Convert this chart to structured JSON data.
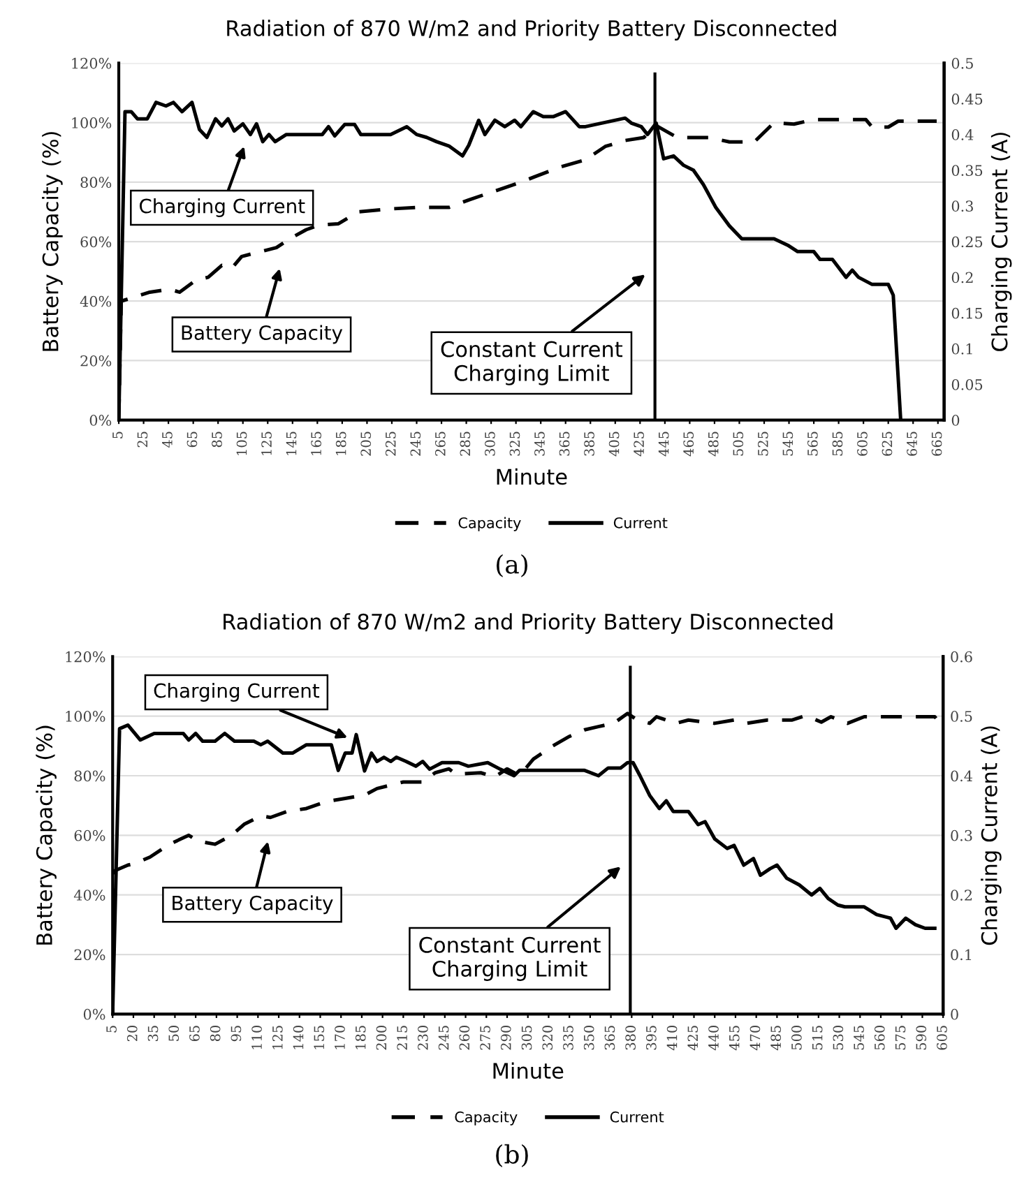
{
  "chart_data": [
    {
      "type": "line",
      "title": "Radiation of 870 W/m2 and Priority Battery Disconnected",
      "xlabel": "Minute",
      "ylabel": "Battery Capacity (%)",
      "y2label": "Charging Current (A)",
      "xlim": [
        5,
        670
      ],
      "xticks": [
        5,
        25,
        45,
        65,
        85,
        105,
        125,
        145,
        165,
        185,
        205,
        225,
        245,
        265,
        285,
        305,
        325,
        345,
        365,
        385,
        405,
        425,
        445,
        465,
        485,
        505,
        525,
        545,
        565,
        585,
        605,
        625,
        645,
        665
      ],
      "ylim": [
        0,
        120
      ],
      "yticks": [
        {
          "value": 0,
          "label": "0%"
        },
        {
          "value": 20,
          "label": "20%"
        },
        {
          "value": 40,
          "label": "40%"
        },
        {
          "value": 60,
          "label": "60%"
        },
        {
          "value": 80,
          "label": "80%"
        },
        {
          "value": 100,
          "label": "100%"
        },
        {
          "value": 120,
          "label": "120%"
        }
      ],
      "y2lim": [
        0,
        0.5
      ],
      "y2ticks": [
        0,
        0.05,
        0.1,
        0.15,
        0.2,
        0.25,
        0.3,
        0.35,
        0.4,
        0.45,
        0.5
      ],
      "grid": "y",
      "legend": "bottom",
      "series": [
        {
          "name": "Capacity",
          "color": "#000000",
          "line_style": "dashed",
          "x": [
            5,
            7,
            15,
            30,
            46,
            54,
            67,
            77,
            88,
            96,
            104,
            132,
            143,
            156,
            166,
            182,
            198,
            224,
            245,
            271,
            287,
            308,
            329,
            360,
            381,
            397,
            413,
            428,
            438,
            455,
            481,
            497,
            517,
            533,
            549,
            565,
            607,
            612,
            625,
            633,
            664
          ],
          "values": [
            0,
            40,
            41,
            43,
            44,
            43,
            47,
            48,
            52,
            51,
            55,
            58,
            61,
            64,
            65.5,
            66,
            70,
            71,
            71.5,
            71.5,
            74,
            77,
            80,
            85,
            87.5,
            92,
            94,
            95,
            99,
            95,
            95,
            93.5,
            93.5,
            100,
            99.5,
            101,
            101,
            98.5,
            98.5,
            100.5,
            100.5
          ]
        },
        {
          "name": "Current",
          "color": "#000000",
          "line_style": "solid",
          "axis": "y2",
          "x": [
            5,
            10,
            15,
            20,
            28,
            35,
            43,
            49,
            56,
            64,
            70,
            76,
            83,
            88,
            93,
            98,
            105,
            111,
            116,
            121,
            126,
            131,
            140,
            169,
            174,
            179,
            187,
            195,
            200,
            224,
            237,
            245,
            253,
            261,
            271,
            282,
            287,
            295,
            300,
            308,
            316,
            324,
            329,
            339,
            347,
            355,
            365,
            376,
            381,
            413,
            418,
            426,
            431,
            438,
            444,
            452,
            460,
            468,
            476,
            486,
            497,
            507,
            515,
            533,
            544,
            552,
            565,
            570,
            580,
            591,
            596,
            601,
            612,
            625,
            629,
            635
          ],
          "values": [
            0,
            0.432,
            0.432,
            0.422,
            0.422,
            0.445,
            0.44,
            0.445,
            0.432,
            0.445,
            0.407,
            0.396,
            0.422,
            0.412,
            0.422,
            0.405,
            0.415,
            0.4,
            0.415,
            0.39,
            0.4,
            0.39,
            0.4,
            0.4,
            0.411,
            0.398,
            0.414,
            0.414,
            0.4,
            0.4,
            0.411,
            0.4,
            0.396,
            0.39,
            0.384,
            0.37,
            0.385,
            0.42,
            0.4,
            0.42,
            0.411,
            0.42,
            0.411,
            0.432,
            0.425,
            0.425,
            0.432,
            0.411,
            0.411,
            0.423,
            0.416,
            0.411,
            0.4,
            0.416,
            0.366,
            0.37,
            0.357,
            0.35,
            0.33,
            0.298,
            0.272,
            0.254,
            0.254,
            0.254,
            0.245,
            0.236,
            0.236,
            0.225,
            0.225,
            0.2,
            0.21,
            0.2,
            0.19,
            0.19,
            0.175,
            0
          ]
        }
      ],
      "ref_lines": [
        {
          "axis": "x",
          "value": 437,
          "color": "#000000"
        }
      ],
      "annotations": [
        "Charging Current",
        "Battery Capacity",
        "Constant Current\nCharging Limit",
        "(a)"
      ]
    },
    {
      "type": "line",
      "title": "Radiation of 870 W/m2 and Priority Battery Disconnected",
      "xlabel": "Minute",
      "ylabel": "Battery Capacity (%)",
      "y2label": "Charging Current (A)",
      "xlim": [
        5,
        605
      ],
      "xticks": [
        5,
        20,
        35,
        50,
        65,
        80,
        95,
        110,
        125,
        140,
        155,
        170,
        185,
        200,
        215,
        230,
        245,
        260,
        275,
        290,
        305,
        320,
        335,
        350,
        365,
        380,
        395,
        410,
        425,
        440,
        455,
        470,
        485,
        500,
        515,
        530,
        545,
        560,
        575,
        590,
        605
      ],
      "ylim": [
        0,
        120
      ],
      "yticks": [
        {
          "value": 0,
          "label": "0%"
        },
        {
          "value": 20,
          "label": "20%"
        },
        {
          "value": 40,
          "label": "40%"
        },
        {
          "value": 60,
          "label": "60%"
        },
        {
          "value": 80,
          "label": "80%"
        },
        {
          "value": 100,
          "label": "100%"
        },
        {
          "value": 120,
          "label": "120%"
        }
      ],
      "y2lim": [
        0,
        0.6
      ],
      "y2ticks": [
        0,
        0.1,
        0.2,
        0.3,
        0.4,
        0.5,
        0.6
      ],
      "grid": "y",
      "legend": "bottom",
      "series": [
        {
          "name": "Capacity",
          "color": "#000000",
          "line_style": "dashed",
          "x": [
            5,
            6,
            16,
            21,
            32,
            46,
            60,
            67,
            79,
            91,
            100,
            112,
            119,
            131,
            145,
            159,
            173,
            187,
            196,
            215,
            229,
            238,
            248,
            253,
            271,
            281,
            290,
            299,
            309,
            323,
            335,
            346,
            356,
            367,
            377,
            384,
            393,
            398,
            412,
            421,
            440,
            454,
            463,
            478,
            496,
            506,
            517,
            524,
            536,
            548,
            599,
            602
          ],
          "values": [
            0,
            48,
            50,
            50.5,
            52.7,
            57,
            60,
            58,
            57,
            60,
            63.7,
            66.5,
            66,
            68,
            69,
            71.3,
            72.4,
            73.5,
            75.7,
            77.9,
            77.9,
            81,
            82.3,
            80.5,
            81,
            79.6,
            82.3,
            80,
            85.6,
            90,
            93.2,
            95.4,
            96.5,
            97.6,
            100.9,
            98.7,
            97.6,
            99.8,
            97.6,
            98.7,
            97.6,
            98.7,
            97.6,
            98.7,
            98.7,
            100.2,
            98,
            99.8,
            97.6,
            99.8,
            99.8,
            98
          ]
        },
        {
          "name": "Current",
          "color": "#000000",
          "line_style": "solid",
          "axis": "y2",
          "x": [
            5,
            10,
            16,
            25,
            35,
            56,
            60,
            65,
            70,
            79,
            86,
            93,
            107,
            112,
            117,
            128,
            135,
            145,
            163,
            168,
            173,
            178,
            181,
            187,
            192,
            196,
            201,
            206,
            210,
            217,
            224,
            229,
            234,
            243,
            255,
            262,
            276,
            285,
            295,
            299,
            323,
            346,
            356,
            363,
            372,
            377,
            381,
            386,
            393,
            400,
            405,
            410,
            421,
            428,
            433,
            440,
            449,
            454,
            461,
            468,
            473,
            480,
            485,
            492,
            501,
            510,
            516,
            522,
            529,
            534,
            548,
            557,
            567,
            571,
            578,
            585,
            592,
            599
          ],
          "values": [
            0,
            0.479,
            0.485,
            0.46,
            0.471,
            0.471,
            0.46,
            0.471,
            0.458,
            0.458,
            0.471,
            0.458,
            0.458,
            0.452,
            0.458,
            0.438,
            0.438,
            0.452,
            0.452,
            0.409,
            0.438,
            0.438,
            0.469,
            0.408,
            0.438,
            0.424,
            0.431,
            0.424,
            0.431,
            0.424,
            0.416,
            0.424,
            0.411,
            0.422,
            0.422,
            0.416,
            0.422,
            0.411,
            0.4,
            0.409,
            0.409,
            0.409,
            0.4,
            0.413,
            0.413,
            0.422,
            0.422,
            0.4,
            0.367,
            0.345,
            0.358,
            0.34,
            0.34,
            0.318,
            0.323,
            0.294,
            0.278,
            0.283,
            0.25,
            0.261,
            0.233,
            0.244,
            0.25,
            0.228,
            0.217,
            0.2,
            0.211,
            0.194,
            0.183,
            0.18,
            0.18,
            0.167,
            0.161,
            0.144,
            0.161,
            0.15,
            0.144,
            0.144
          ]
        }
      ],
      "ref_lines": [
        {
          "axis": "x",
          "value": 379,
          "color": "#000000"
        }
      ],
      "annotations": [
        "Charging Current",
        "Battery Capacity",
        "Constant Current\nCharging Limit",
        "(b)"
      ]
    }
  ]
}
